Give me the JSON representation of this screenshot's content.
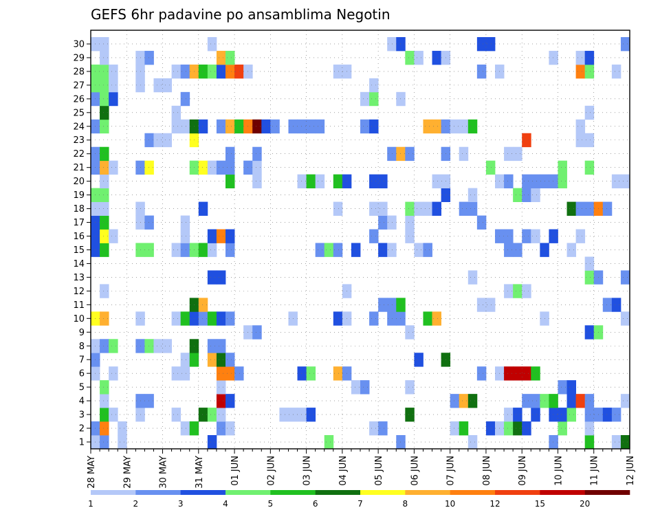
{
  "chart_data": {
    "type": "heatmap",
    "title": "GEFS 6hr padavine po ansamblima Negotin",
    "xlabel": "",
    "ylabel": "",
    "x_labels": [
      "28 MAY",
      "29 MAY",
      "30 MAY",
      "31 MAY",
      "01 JUN",
      "02 JUN",
      "03 JUN",
      "04 JUN",
      "05 JUN",
      "06 JUN",
      "07 JUN",
      "08 JUN",
      "09 JUN",
      "10 JUN",
      "11 JUN",
      "12 JUN"
    ],
    "steps_per_day": 4,
    "n_steps": 60,
    "y_labels": [
      1,
      2,
      3,
      4,
      5,
      6,
      7,
      8,
      9,
      10,
      11,
      12,
      13,
      14,
      15,
      16,
      17,
      18,
      19,
      20,
      21,
      22,
      23,
      24,
      25,
      26,
      27,
      28,
      29,
      30
    ],
    "grid": true,
    "legend_position": "bottom",
    "legend_ticks": [
      "1",
      "2",
      "3",
      "4",
      "5",
      "6",
      "7",
      "8",
      "10",
      "12",
      "15",
      "20"
    ],
    "colorscale": [
      "#b4c8f8",
      "#6890f0",
      "#2050e0",
      "#70f070",
      "#20c020",
      "#107010",
      "#ffff20",
      "#ffb030",
      "#ff8010",
      "#f04010",
      "#c00000",
      "#700000"
    ],
    "cells": [
      [
        1,
        1,
        0
      ],
      [
        1,
        2,
        1
      ],
      [
        1,
        4,
        0
      ],
      [
        1,
        14,
        2
      ],
      [
        1,
        27,
        3
      ],
      [
        1,
        35,
        1
      ],
      [
        1,
        43,
        0
      ],
      [
        1,
        52,
        1
      ],
      [
        1,
        56,
        4
      ],
      [
        1,
        59,
        0
      ],
      [
        1,
        60,
        5
      ],
      [
        2,
        1,
        1
      ],
      [
        2,
        2,
        8
      ],
      [
        2,
        4,
        0
      ],
      [
        2,
        11,
        0
      ],
      [
        2,
        12,
        4
      ],
      [
        2,
        15,
        1
      ],
      [
        2,
        16,
        0
      ],
      [
        2,
        32,
        0
      ],
      [
        2,
        33,
        1
      ],
      [
        2,
        41,
        0
      ],
      [
        2,
        42,
        4
      ],
      [
        2,
        45,
        2
      ],
      [
        2,
        46,
        0
      ],
      [
        2,
        47,
        3
      ],
      [
        2,
        48,
        5
      ],
      [
        2,
        49,
        2
      ],
      [
        2,
        53,
        3
      ],
      [
        2,
        56,
        0
      ],
      [
        3,
        2,
        4
      ],
      [
        3,
        3,
        0
      ],
      [
        3,
        6,
        0
      ],
      [
        3,
        10,
        0
      ],
      [
        3,
        13,
        5
      ],
      [
        3,
        14,
        3
      ],
      [
        3,
        15,
        0
      ],
      [
        3,
        22,
        0
      ],
      [
        3,
        23,
        0
      ],
      [
        3,
        24,
        0
      ],
      [
        3,
        25,
        2
      ],
      [
        3,
        36,
        5
      ],
      [
        3,
        47,
        0
      ],
      [
        3,
        48,
        2
      ],
      [
        3,
        50,
        2
      ],
      [
        3,
        52,
        2
      ],
      [
        3,
        53,
        2
      ],
      [
        3,
        54,
        3
      ],
      [
        3,
        56,
        1
      ],
      [
        3,
        57,
        1
      ],
      [
        3,
        58,
        2
      ],
      [
        3,
        59,
        1
      ],
      [
        4,
        2,
        0
      ],
      [
        4,
        6,
        1
      ],
      [
        4,
        7,
        1
      ],
      [
        4,
        15,
        10
      ],
      [
        4,
        16,
        2
      ],
      [
        4,
        41,
        1
      ],
      [
        4,
        42,
        7
      ],
      [
        4,
        43,
        5
      ],
      [
        4,
        49,
        1
      ],
      [
        4,
        50,
        1
      ],
      [
        4,
        51,
        3
      ],
      [
        4,
        52,
        4
      ],
      [
        4,
        54,
        2
      ],
      [
        4,
        55,
        9
      ],
      [
        4,
        56,
        1
      ],
      [
        4,
        60,
        0
      ],
      [
        5,
        2,
        3
      ],
      [
        5,
        15,
        0
      ],
      [
        5,
        30,
        0
      ],
      [
        5,
        31,
        1
      ],
      [
        5,
        36,
        0
      ],
      [
        5,
        53,
        1
      ],
      [
        5,
        54,
        2
      ],
      [
        6,
        1,
        0
      ],
      [
        6,
        3,
        0
      ],
      [
        6,
        10,
        0
      ],
      [
        6,
        11,
        0
      ],
      [
        6,
        15,
        8
      ],
      [
        6,
        16,
        8
      ],
      [
        6,
        17,
        1
      ],
      [
        6,
        24,
        2
      ],
      [
        6,
        25,
        3
      ],
      [
        6,
        28,
        7
      ],
      [
        6,
        29,
        1
      ],
      [
        6,
        44,
        1
      ],
      [
        6,
        46,
        0
      ],
      [
        6,
        47,
        10
      ],
      [
        6,
        48,
        10
      ],
      [
        6,
        49,
        10
      ],
      [
        6,
        50,
        4
      ],
      [
        7,
        1,
        1
      ],
      [
        7,
        11,
        0
      ],
      [
        7,
        12,
        4
      ],
      [
        7,
        14,
        7
      ],
      [
        7,
        15,
        5
      ],
      [
        7,
        16,
        1
      ],
      [
        7,
        37,
        2
      ],
      [
        7,
        40,
        5
      ],
      [
        8,
        1,
        0
      ],
      [
        8,
        2,
        1
      ],
      [
        8,
        3,
        3
      ],
      [
        8,
        6,
        1
      ],
      [
        8,
        7,
        3
      ],
      [
        8,
        8,
        0
      ],
      [
        8,
        9,
        0
      ],
      [
        8,
        12,
        5
      ],
      [
        8,
        14,
        1
      ],
      [
        8,
        15,
        1
      ],
      [
        9,
        18,
        0
      ],
      [
        9,
        19,
        1
      ],
      [
        9,
        36,
        0
      ],
      [
        9,
        56,
        2
      ],
      [
        9,
        57,
        3
      ],
      [
        10,
        1,
        6
      ],
      [
        10,
        2,
        7
      ],
      [
        10,
        6,
        0
      ],
      [
        10,
        10,
        0
      ],
      [
        10,
        11,
        4
      ],
      [
        10,
        12,
        2
      ],
      [
        10,
        13,
        1
      ],
      [
        10,
        14,
        4
      ],
      [
        10,
        15,
        2
      ],
      [
        10,
        16,
        1
      ],
      [
        10,
        23,
        0
      ],
      [
        10,
        28,
        2
      ],
      [
        10,
        29,
        0
      ],
      [
        10,
        32,
        1
      ],
      [
        10,
        34,
        1
      ],
      [
        10,
        35,
        1
      ],
      [
        10,
        38,
        4
      ],
      [
        10,
        39,
        7
      ],
      [
        10,
        51,
        0
      ],
      [
        10,
        60,
        0
      ],
      [
        11,
        12,
        5
      ],
      [
        11,
        13,
        7
      ],
      [
        11,
        33,
        1
      ],
      [
        11,
        34,
        1
      ],
      [
        11,
        35,
        4
      ],
      [
        11,
        44,
        0
      ],
      [
        11,
        45,
        0
      ],
      [
        11,
        58,
        1
      ],
      [
        11,
        59,
        2
      ],
      [
        12,
        2,
        0
      ],
      [
        12,
        29,
        0
      ],
      [
        12,
        47,
        0
      ],
      [
        12,
        48,
        3
      ],
      [
        12,
        49,
        0
      ],
      [
        13,
        14,
        2
      ],
      [
        13,
        15,
        2
      ],
      [
        13,
        43,
        0
      ],
      [
        13,
        56,
        3
      ],
      [
        13,
        57,
        1
      ],
      [
        13,
        60,
        1
      ],
      [
        14,
        56,
        0
      ],
      [
        15,
        1,
        2
      ],
      [
        15,
        2,
        4
      ],
      [
        15,
        6,
        3
      ],
      [
        15,
        7,
        3
      ],
      [
        15,
        10,
        0
      ],
      [
        15,
        11,
        1
      ],
      [
        15,
        12,
        3
      ],
      [
        15,
        13,
        4
      ],
      [
        15,
        14,
        0
      ],
      [
        15,
        16,
        1
      ],
      [
        15,
        26,
        1
      ],
      [
        15,
        27,
        3
      ],
      [
        15,
        28,
        1
      ],
      [
        15,
        30,
        2
      ],
      [
        15,
        33,
        2
      ],
      [
        15,
        34,
        0
      ],
      [
        15,
        37,
        0
      ],
      [
        15,
        38,
        1
      ],
      [
        15,
        47,
        1
      ],
      [
        15,
        48,
        1
      ],
      [
        15,
        51,
        2
      ],
      [
        15,
        54,
        0
      ],
      [
        16,
        1,
        2
      ],
      [
        16,
        2,
        6
      ],
      [
        16,
        3,
        0
      ],
      [
        16,
        11,
        0
      ],
      [
        16,
        14,
        2
      ],
      [
        16,
        15,
        8
      ],
      [
        16,
        16,
        2
      ],
      [
        16,
        32,
        1
      ],
      [
        16,
        36,
        0
      ],
      [
        16,
        46,
        1
      ],
      [
        16,
        47,
        1
      ],
      [
        16,
        49,
        1
      ],
      [
        16,
        50,
        0
      ],
      [
        16,
        52,
        2
      ],
      [
        16,
        55,
        0
      ],
      [
        17,
        1,
        2
      ],
      [
        17,
        2,
        4
      ],
      [
        17,
        6,
        0
      ],
      [
        17,
        7,
        1
      ],
      [
        17,
        11,
        0
      ],
      [
        17,
        33,
        1
      ],
      [
        17,
        34,
        0
      ],
      [
        17,
        36,
        0
      ],
      [
        17,
        44,
        1
      ],
      [
        18,
        1,
        0
      ],
      [
        18,
        2,
        0
      ],
      [
        18,
        6,
        0
      ],
      [
        18,
        13,
        2
      ],
      [
        18,
        28,
        0
      ],
      [
        18,
        32,
        0
      ],
      [
        18,
        33,
        0
      ],
      [
        18,
        36,
        3
      ],
      [
        18,
        37,
        0
      ],
      [
        18,
        38,
        0
      ],
      [
        18,
        39,
        2
      ],
      [
        18,
        42,
        1
      ],
      [
        18,
        43,
        1
      ],
      [
        18,
        54,
        5
      ],
      [
        18,
        55,
        1
      ],
      [
        18,
        56,
        1
      ],
      [
        18,
        57,
        8
      ],
      [
        18,
        58,
        1
      ],
      [
        19,
        1,
        3
      ],
      [
        19,
        2,
        3
      ],
      [
        19,
        40,
        2
      ],
      [
        19,
        43,
        0
      ],
      [
        19,
        48,
        3
      ],
      [
        19,
        49,
        1
      ],
      [
        19,
        50,
        0
      ],
      [
        20,
        2,
        0
      ],
      [
        20,
        16,
        4
      ],
      [
        20,
        19,
        0
      ],
      [
        20,
        24,
        0
      ],
      [
        20,
        25,
        4
      ],
      [
        20,
        26,
        0
      ],
      [
        20,
        28,
        4
      ],
      [
        20,
        29,
        2
      ],
      [
        20,
        32,
        2
      ],
      [
        20,
        33,
        2
      ],
      [
        20,
        39,
        0
      ],
      [
        20,
        40,
        0
      ],
      [
        20,
        46,
        0
      ],
      [
        20,
        47,
        1
      ],
      [
        20,
        49,
        1
      ],
      [
        20,
        50,
        1
      ],
      [
        20,
        51,
        1
      ],
      [
        20,
        52,
        1
      ],
      [
        20,
        53,
        3
      ],
      [
        20,
        59,
        0
      ],
      [
        20,
        60,
        0
      ],
      [
        21,
        1,
        1
      ],
      [
        21,
        2,
        7
      ],
      [
        21,
        3,
        0
      ],
      [
        21,
        6,
        1
      ],
      [
        21,
        7,
        6
      ],
      [
        21,
        12,
        3
      ],
      [
        21,
        13,
        6
      ],
      [
        21,
        14,
        0
      ],
      [
        21,
        15,
        1
      ],
      [
        21,
        16,
        1
      ],
      [
        21,
        18,
        1
      ],
      [
        21,
        19,
        0
      ],
      [
        21,
        45,
        3
      ],
      [
        21,
        53,
        3
      ],
      [
        21,
        56,
        3
      ],
      [
        22,
        1,
        1
      ],
      [
        22,
        2,
        4
      ],
      [
        22,
        16,
        1
      ],
      [
        22,
        19,
        1
      ],
      [
        22,
        34,
        1
      ],
      [
        22,
        35,
        7
      ],
      [
        22,
        36,
        1
      ],
      [
        22,
        40,
        1
      ],
      [
        22,
        42,
        0
      ],
      [
        22,
        47,
        0
      ],
      [
        22,
        48,
        0
      ],
      [
        23,
        7,
        1
      ],
      [
        23,
        8,
        0
      ],
      [
        23,
        9,
        0
      ],
      [
        23,
        12,
        6
      ],
      [
        23,
        49,
        9
      ],
      [
        23,
        55,
        0
      ],
      [
        23,
        56,
        0
      ],
      [
        24,
        1,
        1
      ],
      [
        24,
        2,
        3
      ],
      [
        24,
        10,
        0
      ],
      [
        24,
        11,
        0
      ],
      [
        24,
        12,
        5
      ],
      [
        24,
        13,
        2
      ],
      [
        24,
        15,
        1
      ],
      [
        24,
        16,
        7
      ],
      [
        24,
        17,
        4
      ],
      [
        24,
        18,
        8
      ],
      [
        24,
        19,
        11
      ],
      [
        24,
        20,
        2
      ],
      [
        24,
        21,
        1
      ],
      [
        24,
        23,
        1
      ],
      [
        24,
        24,
        1
      ],
      [
        24,
        25,
        1
      ],
      [
        24,
        26,
        1
      ],
      [
        24,
        31,
        1
      ],
      [
        24,
        32,
        2
      ],
      [
        24,
        38,
        7
      ],
      [
        24,
        39,
        7
      ],
      [
        24,
        40,
        1
      ],
      [
        24,
        41,
        0
      ],
      [
        24,
        42,
        0
      ],
      [
        24,
        43,
        4
      ],
      [
        24,
        55,
        0
      ],
      [
        25,
        2,
        5
      ],
      [
        25,
        10,
        0
      ],
      [
        25,
        56,
        0
      ],
      [
        26,
        1,
        1
      ],
      [
        26,
        2,
        3
      ],
      [
        26,
        3,
        2
      ],
      [
        26,
        11,
        1
      ],
      [
        26,
        31,
        0
      ],
      [
        26,
        32,
        3
      ],
      [
        26,
        35,
        0
      ],
      [
        27,
        1,
        3
      ],
      [
        27,
        2,
        3
      ],
      [
        27,
        3,
        0
      ],
      [
        27,
        6,
        0
      ],
      [
        27,
        8,
        0
      ],
      [
        27,
        9,
        0
      ],
      [
        27,
        32,
        0
      ],
      [
        28,
        1,
        3
      ],
      [
        28,
        2,
        3
      ],
      [
        28,
        3,
        0
      ],
      [
        28,
        6,
        0
      ],
      [
        28,
        10,
        0
      ],
      [
        28,
        11,
        1
      ],
      [
        28,
        12,
        7
      ],
      [
        28,
        13,
        4
      ],
      [
        28,
        14,
        3
      ],
      [
        28,
        15,
        2
      ],
      [
        28,
        16,
        8
      ],
      [
        28,
        17,
        9
      ],
      [
        28,
        18,
        0
      ],
      [
        28,
        28,
        0
      ],
      [
        28,
        29,
        0
      ],
      [
        28,
        44,
        1
      ],
      [
        28,
        46,
        0
      ],
      [
        28,
        55,
        8
      ],
      [
        28,
        56,
        3
      ],
      [
        28,
        59,
        0
      ],
      [
        29,
        2,
        0
      ],
      [
        29,
        6,
        0
      ],
      [
        29,
        7,
        1
      ],
      [
        29,
        15,
        7
      ],
      [
        29,
        16,
        3
      ],
      [
        29,
        36,
        3
      ],
      [
        29,
        37,
        0
      ],
      [
        29,
        39,
        2
      ],
      [
        29,
        40,
        0
      ],
      [
        29,
        52,
        0
      ],
      [
        29,
        55,
        0
      ],
      [
        29,
        56,
        2
      ],
      [
        30,
        1,
        0
      ],
      [
        30,
        2,
        0
      ],
      [
        30,
        14,
        0
      ],
      [
        30,
        34,
        0
      ],
      [
        30,
        35,
        2
      ],
      [
        30,
        44,
        2
      ],
      [
        30,
        45,
        2
      ],
      [
        30,
        60,
        1
      ]
    ]
  }
}
